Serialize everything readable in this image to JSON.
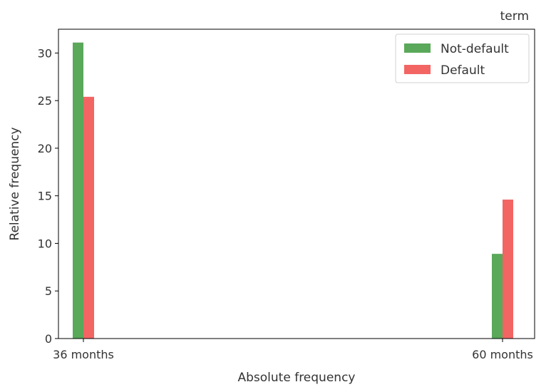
{
  "chart_data": {
    "type": "bar",
    "title": "term",
    "xlabel": "Absolute frequency",
    "ylabel": "Relative frequency",
    "categories": [
      "36 months",
      "60 months"
    ],
    "series": [
      {
        "name": "Not-default",
        "color": "#5aa85a",
        "values": [
          31.1,
          8.9
        ]
      },
      {
        "name": "Default",
        "color": "#f26563",
        "values": [
          25.4,
          14.6
        ]
      }
    ],
    "yticks": [
      0,
      5,
      10,
      15,
      20,
      25,
      30
    ],
    "ylim": [
      0,
      32.5
    ],
    "grid": false,
    "legend_position": "top-right"
  }
}
